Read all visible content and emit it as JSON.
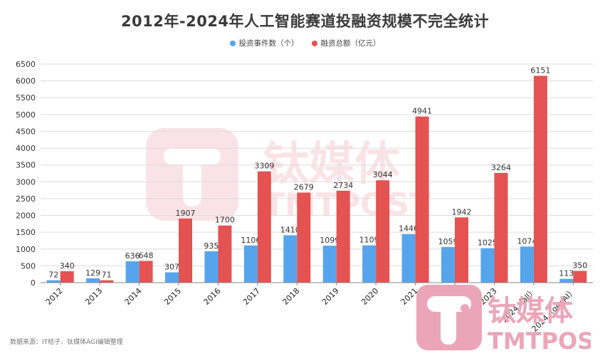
{
  "title": "2012年-2024年人工智能赛道投融资规模不完全统计",
  "legend": [
    {
      "label": "投资事件数（个）",
      "color": "#56a5ec"
    },
    {
      "label": "融资总额（亿元）",
      "color": "#e45252"
    }
  ],
  "source_note": "数据来源：IT桔子、钛媒体AGI编辑整理",
  "watermark": {
    "brand_cn": "钛媒体",
    "brand_en": "TMTPOST"
  },
  "chart_data": {
    "type": "bar",
    "title": "2012年-2024年人工智能赛道投融资规模不完全统计",
    "xlabel": "",
    "ylabel": "",
    "ylim": [
      0,
      6500
    ],
    "yticks": [
      0,
      500,
      1000,
      1500,
      2000,
      2500,
      3000,
      3500,
      4000,
      4500,
      5000,
      5500,
      6000,
      6500
    ],
    "grid": true,
    "legend_position": "top",
    "categories": [
      "2012",
      "2013",
      "2014",
      "2015",
      "2016",
      "2017",
      "2018",
      "2019",
      "2020",
      "2021",
      "2022",
      "2023",
      "2024（all）",
      "2024（genAI）"
    ],
    "series": [
      {
        "name": "投资事件数（个）",
        "color": "#56a5ec",
        "values": [
          72,
          129,
          636,
          307,
          935,
          1106,
          1410,
          1099,
          1109,
          1446,
          1059,
          1025,
          1074,
          113
        ]
      },
      {
        "name": "融资总额（亿元）",
        "color": "#e45252",
        "values": [
          340,
          71,
          648,
          1907,
          1700,
          3309,
          2679,
          2734,
          3044,
          4941,
          1942,
          3264,
          6151,
          350
        ]
      }
    ]
  }
}
